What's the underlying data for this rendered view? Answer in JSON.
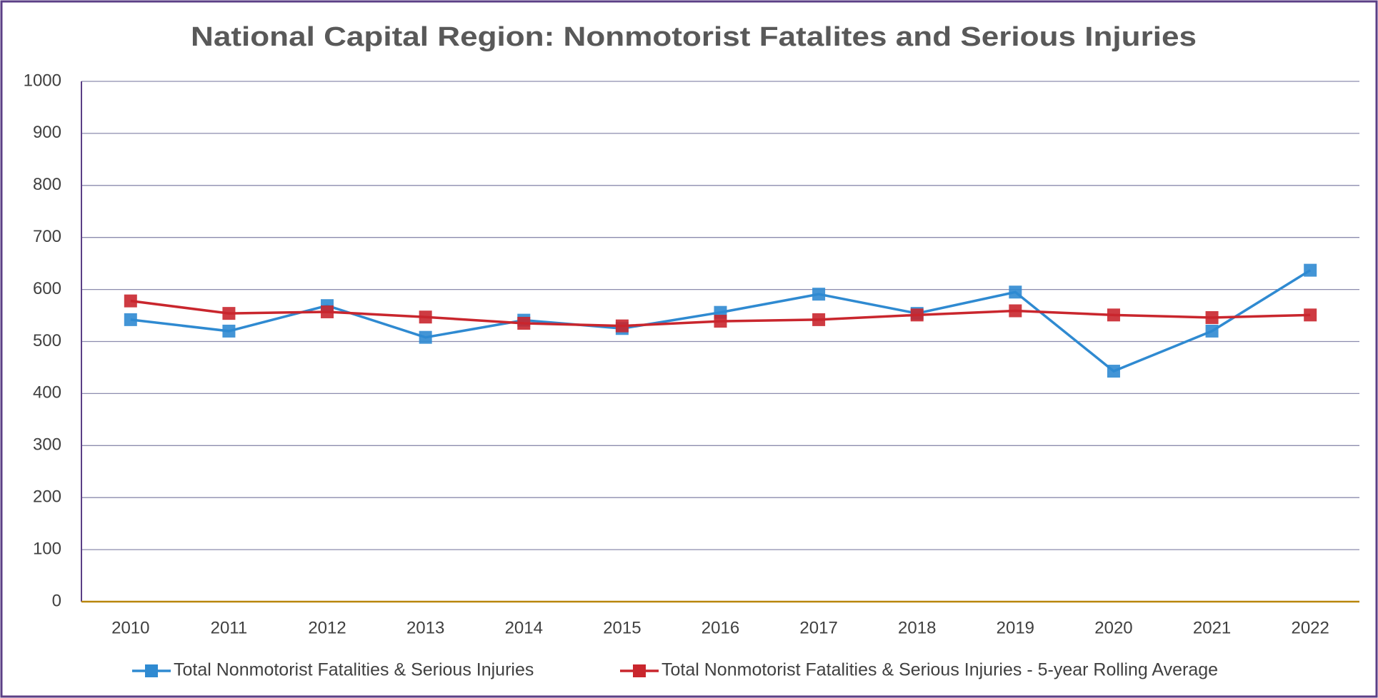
{
  "chart_data": {
    "type": "line",
    "title": "National Capital Region: Nonmotorist Fatalites and Serious Injuries",
    "categories": [
      "2010",
      "2011",
      "2012",
      "2013",
      "2014",
      "2015",
      "2016",
      "2017",
      "2018",
      "2019",
      "2020",
      "2021",
      "2022"
    ],
    "series": [
      {
        "name": "Total Nonmotorist Fatalities & Serious Injuries",
        "color": "#2f8ad1",
        "values": [
          542,
          520,
          569,
          508,
          541,
          525,
          556,
          591,
          554,
          595,
          443,
          520,
          637
        ]
      },
      {
        "name": "Total Nonmotorist Fatalities & Serious Injuries - 5-year Rolling Average",
        "color": "#c9262d",
        "values": [
          578,
          554,
          557,
          547,
          535,
          530,
          539,
          542,
          551,
          559,
          551,
          546,
          551
        ]
      }
    ],
    "ylim": [
      0,
      1000
    ],
    "yticks": [
      0,
      100,
      200,
      300,
      400,
      500,
      600,
      700,
      800,
      900,
      1000
    ],
    "grid": true,
    "legend": "bottom"
  }
}
